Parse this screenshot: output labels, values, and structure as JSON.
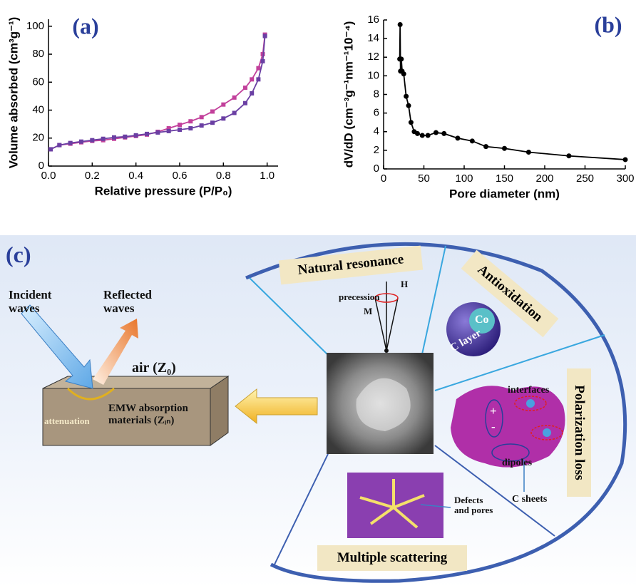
{
  "chart_data": [
    {
      "type": "line",
      "label": "(a)",
      "x_label": "Relative pressure (P/P₀)",
      "y_label": "Volume absorbed (cm³g⁻¹)",
      "marker": "square",
      "x": [
        0.01,
        0.05,
        0.1,
        0.15,
        0.2,
        0.25,
        0.3,
        0.35,
        0.4,
        0.45,
        0.5,
        0.55,
        0.6,
        0.65,
        0.7,
        0.75,
        0.8,
        0.85,
        0.9,
        0.93,
        0.96,
        0.98,
        0.99
      ],
      "series": [
        {
          "color": "#c2409b",
          "values": [
            12,
            15,
            16,
            17,
            18,
            18.5,
            19.5,
            20.5,
            21.5,
            22.5,
            24.5,
            27,
            29.5,
            32,
            35,
            39,
            44,
            49,
            56,
            62,
            70,
            80,
            94
          ]
        },
        {
          "color": "#6a3fa3",
          "values": [
            12,
            15,
            16.5,
            17.5,
            18.5,
            19.5,
            20.5,
            21,
            22,
            23,
            24,
            25,
            26,
            27,
            29,
            31,
            34,
            38,
            45,
            52,
            62,
            75,
            93
          ]
        }
      ],
      "xlim": [
        0,
        1.05
      ],
      "ylim": [
        0,
        105
      ],
      "xticks": [
        {
          "value": 0,
          "label": "0.0"
        },
        0.2,
        0.4,
        0.6,
        0.8,
        {
          "value": 1,
          "label": "1.0"
        }
      ],
      "yticks": [
        0,
        20,
        40,
        60,
        80,
        100
      ]
    },
    {
      "type": "line",
      "label": "(b)",
      "x_label": "Pore diameter (nm)",
      "y_label": "dV/dD (cm⁻³g⁻¹nm⁻¹10⁻⁴)",
      "marker": "circle",
      "x": [
        20,
        20.5,
        21,
        22,
        23,
        25,
        28,
        31,
        34,
        38,
        42,
        48,
        55,
        65,
        75,
        92,
        110,
        127,
        150,
        180,
        230,
        300
      ],
      "series": [
        {
          "color": "#000000",
          "values": [
            11.8,
            15.5,
            10.5,
            11.8,
            10.5,
            10.2,
            7.8,
            6.8,
            5,
            4,
            3.8,
            3.6,
            3.6,
            3.9,
            3.8,
            3.3,
            3,
            2.4,
            2.2,
            1.8,
            1.4,
            1.0
          ]
        }
      ],
      "xlim": [
        0,
        300
      ],
      "ylim": [
        0,
        16
      ],
      "xticks": [
        0,
        50,
        100,
        150,
        200,
        250,
        300
      ],
      "yticks": [
        0,
        2,
        4,
        6,
        8,
        10,
        12,
        14,
        16
      ]
    }
  ],
  "diagram": {
    "label": "(c)",
    "incident": "Incident waves",
    "reflected": "Reflected waves",
    "air": "air (Z₀)",
    "material": "EMW absorption materials (Zᵢₙ)",
    "attenuation": "attenuation",
    "natural_resonance": "Natural resonance",
    "precession": "precession",
    "h": "H",
    "m": "M",
    "antioxidation": "Antioxidation",
    "co": "Co",
    "c_layer": "C layer",
    "polarization_loss": "Polarization loss",
    "interfaces": "interfaces",
    "dipoles": "dipoles",
    "c_sheets": "C sheets",
    "plus": "+",
    "minus": "-",
    "defects": "Defects and pores",
    "multiple_scattering": "Multiple scattering"
  }
}
